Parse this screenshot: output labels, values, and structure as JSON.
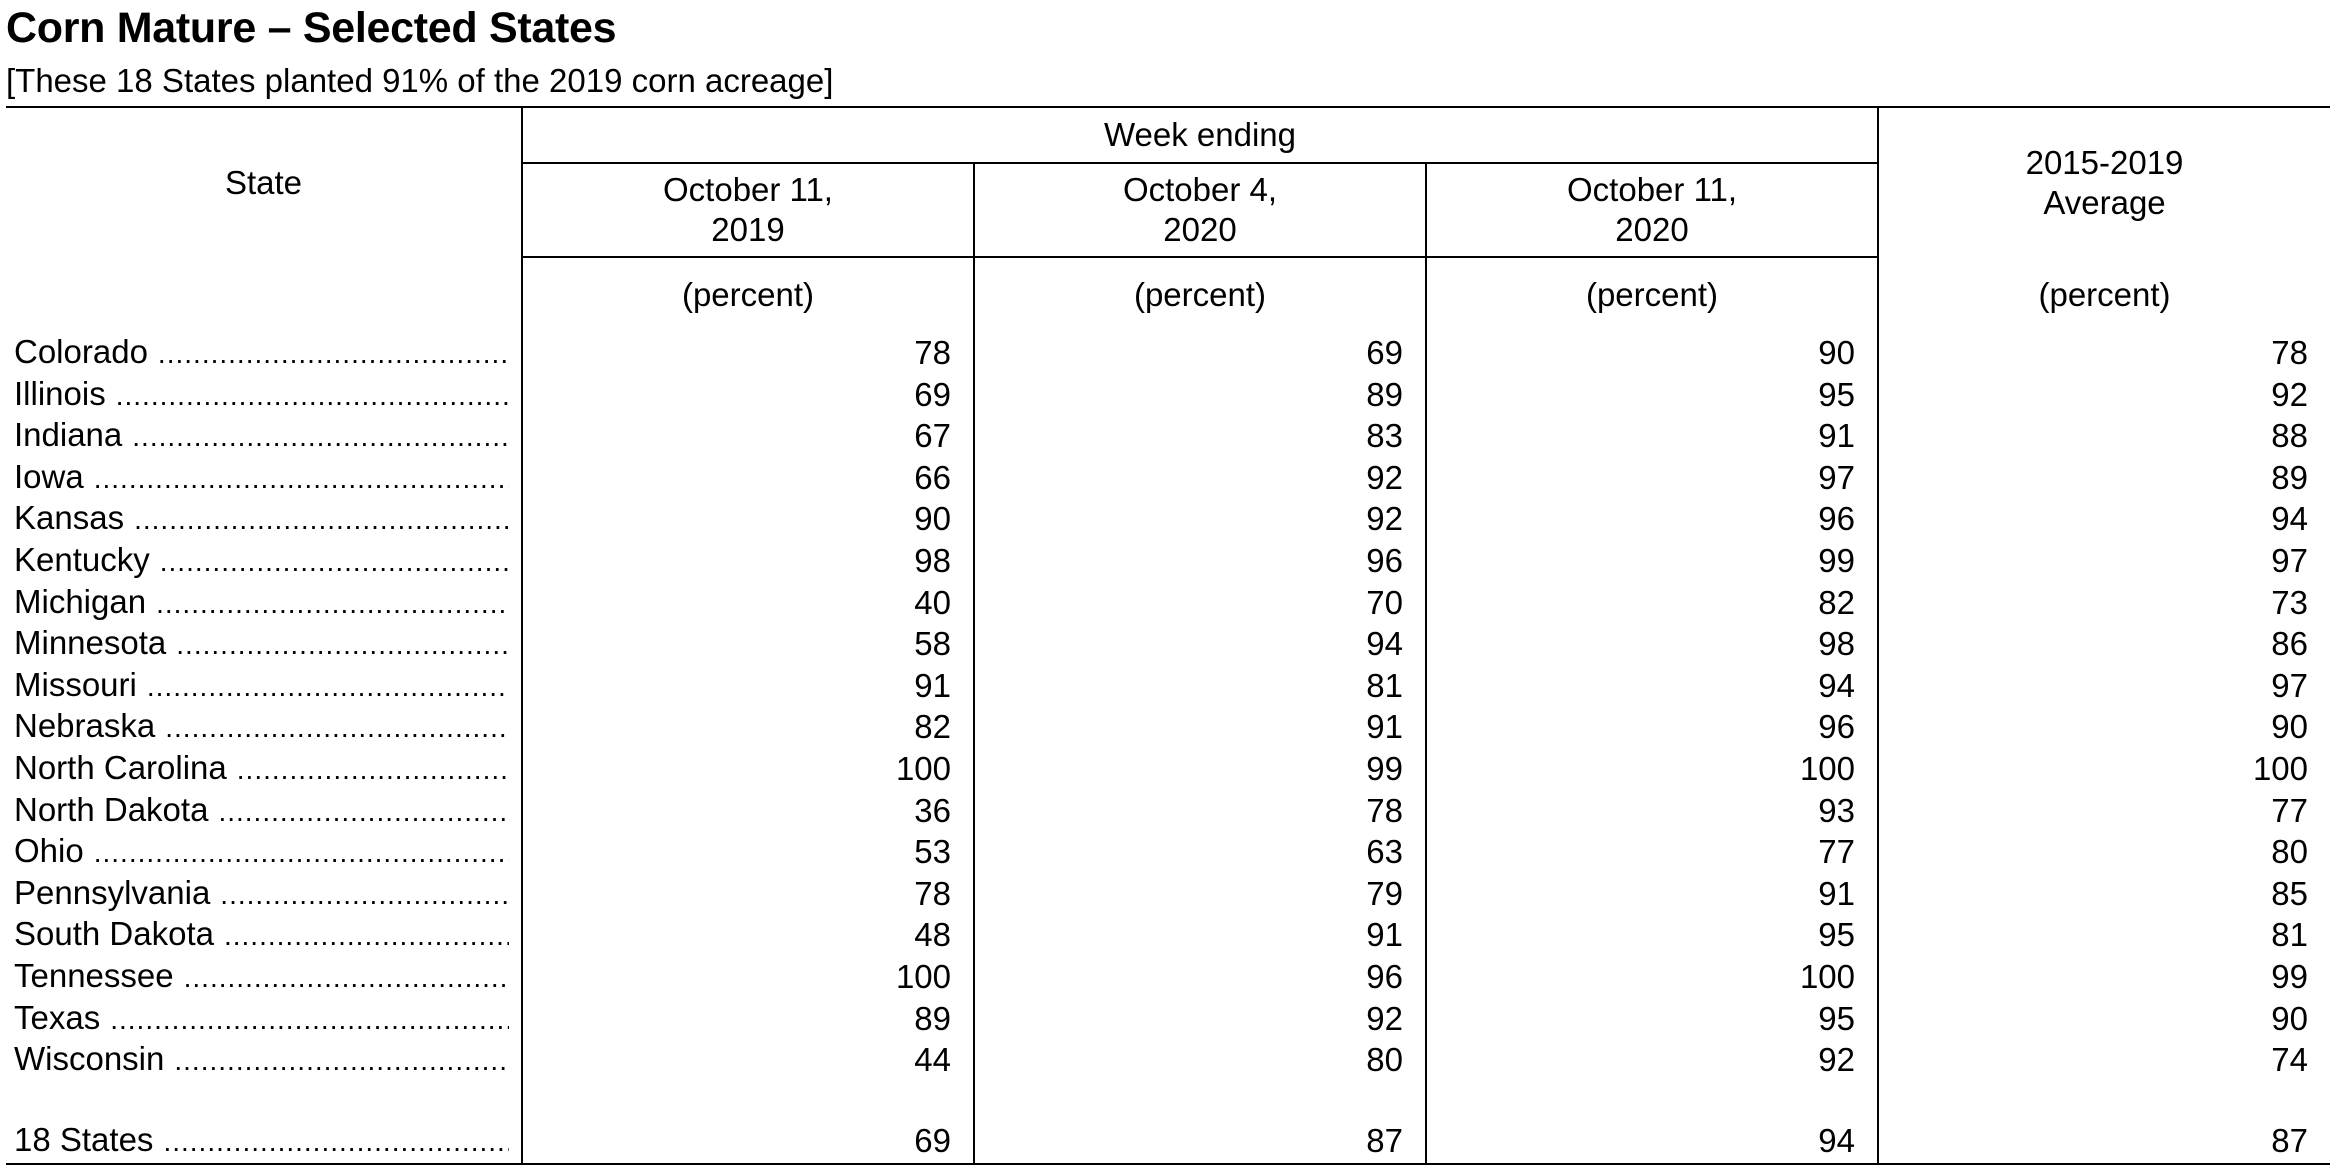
{
  "title": "Corn Mature – Selected States",
  "subtitle": "[These 18 States planted 91% of the 2019 corn acreage]",
  "table": {
    "state_header": "State",
    "week_header": "Week ending",
    "columns": [
      {
        "line1": "October 11,",
        "line2": "2019"
      },
      {
        "line1": "October 4,",
        "line2": "2020"
      },
      {
        "line1": "October 11,",
        "line2": "2020"
      }
    ],
    "average_header": {
      "line1": "2015-2019",
      "line2": "Average"
    },
    "unit": "(percent)",
    "leader_dots": "..................................................",
    "rows": [
      {
        "state": "Colorado",
        "values": [
          "78",
          "69",
          "90",
          "78"
        ]
      },
      {
        "state": "Illinois",
        "values": [
          "69",
          "89",
          "95",
          "92"
        ]
      },
      {
        "state": "Indiana",
        "values": [
          "67",
          "83",
          "91",
          "88"
        ]
      },
      {
        "state": "Iowa",
        "values": [
          "66",
          "92",
          "97",
          "89"
        ]
      },
      {
        "state": "Kansas",
        "values": [
          "90",
          "92",
          "96",
          "94"
        ]
      },
      {
        "state": "Kentucky",
        "values": [
          "98",
          "96",
          "99",
          "97"
        ]
      },
      {
        "state": "Michigan",
        "values": [
          "40",
          "70",
          "82",
          "73"
        ]
      },
      {
        "state": "Minnesota",
        "values": [
          "58",
          "94",
          "98",
          "86"
        ]
      },
      {
        "state": "Missouri",
        "values": [
          "91",
          "81",
          "94",
          "97"
        ]
      },
      {
        "state": "Nebraska",
        "values": [
          "82",
          "91",
          "96",
          "90"
        ]
      },
      {
        "state": "North Carolina",
        "values": [
          "100",
          "99",
          "100",
          "100"
        ]
      },
      {
        "state": "North Dakota",
        "values": [
          "36",
          "78",
          "93",
          "77"
        ]
      },
      {
        "state": "Ohio",
        "values": [
          "53",
          "63",
          "77",
          "80"
        ]
      },
      {
        "state": "Pennsylvania",
        "values": [
          "78",
          "79",
          "91",
          "85"
        ]
      },
      {
        "state": "South Dakota",
        "values": [
          "48",
          "91",
          "95",
          "81"
        ]
      },
      {
        "state": "Tennessee",
        "values": [
          "100",
          "96",
          "100",
          "99"
        ]
      },
      {
        "state": "Texas",
        "values": [
          "89",
          "92",
          "95",
          "90"
        ]
      },
      {
        "state": "Wisconsin",
        "values": [
          "44",
          "80",
          "92",
          "74"
        ]
      }
    ],
    "total": {
      "state": "18 States",
      "values": [
        "69",
        "87",
        "94",
        "87"
      ]
    }
  }
}
